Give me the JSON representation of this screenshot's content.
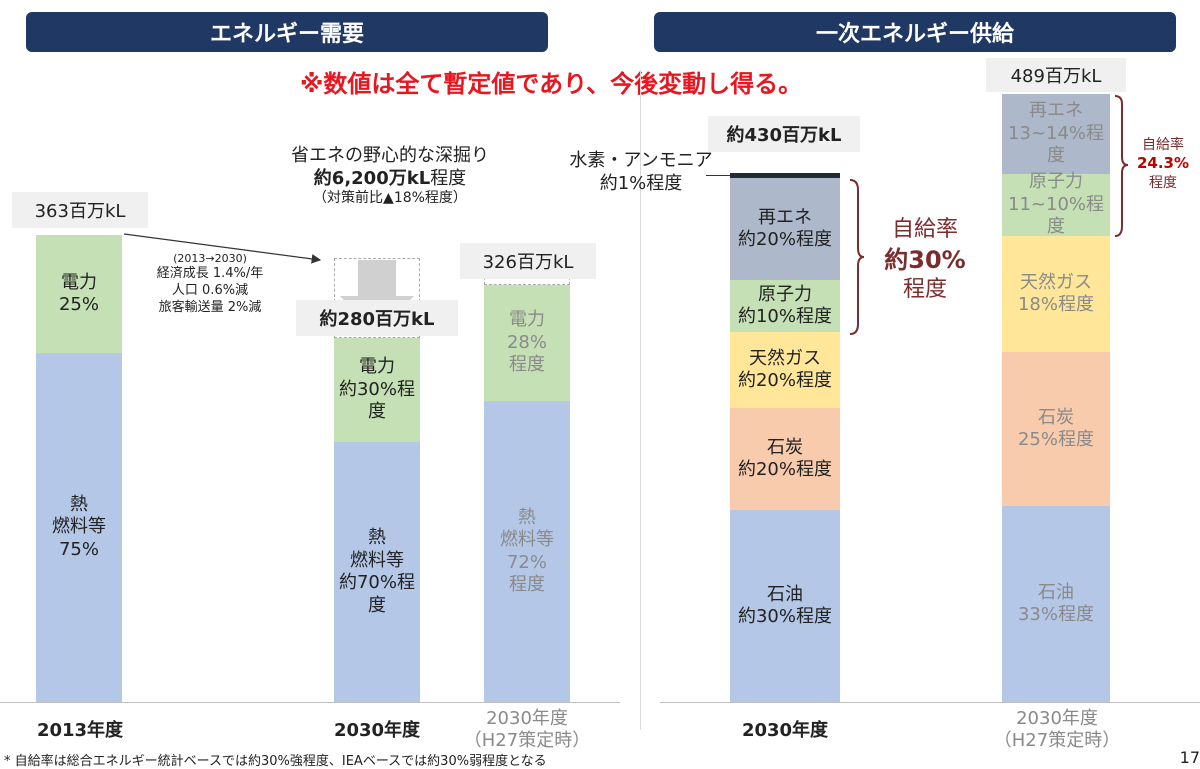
{
  "headers": {
    "left": "エネルギー需要",
    "right": "一次エネルギー供給"
  },
  "warning": "※数値は全て暫定値であり、今後変動し得る。",
  "footnote": "* 自給率は総合エネルギー統計ベースでは約30%強程度、IEAベースでは約30%弱程度となる",
  "page_number": "17",
  "colors": {
    "header_bg": "#1f3864",
    "warning": "#e8171f",
    "heat": "#b4c7e7",
    "power": "#c5e0b4",
    "renew": "#adb9ca",
    "nuclear": "#c5e0b4",
    "gas": "#ffe699",
    "coal": "#f8cbad",
    "oil": "#b4c7e7",
    "hydrogen": "#222a35",
    "self_rate": "#7b2c2c"
  },
  "demand": {
    "bar2013": {
      "total": "363百万kL",
      "category": "2013年度",
      "seg_power": [
        "電力",
        "25%"
      ],
      "seg_heat": [
        "熱",
        "燃料等",
        "75%"
      ]
    },
    "arrow_note": [
      "(2013→2030)",
      "経済成長 1.4%/年",
      "人口 0.6%減",
      "旅客輸送量 2%減"
    ],
    "saving": {
      "line1": "省エネの野心的な深掘り",
      "line2_bold": "約6,200万kL",
      "line2_rest": "程度",
      "line3": "（対策前比▲18%程度）"
    },
    "bar2030": {
      "total": "約280百万kL",
      "category": "2030年度",
      "seg_power": [
        "電力",
        "約30%程度"
      ],
      "seg_heat": [
        "熱",
        "燃料等",
        "約70%程度"
      ]
    },
    "bar2030_h27": {
      "total": "326百万kL",
      "category": [
        "2030年度",
        "（H27策定時）"
      ],
      "seg_power": [
        "電力",
        "28%",
        "程度"
      ],
      "seg_heat": [
        "熱",
        "燃料等",
        "72%",
        "程度"
      ]
    }
  },
  "supply": {
    "bar2030": {
      "total": "約430百万kL",
      "category": "2030年度",
      "hydrogen_label": [
        "水素・アンモニア",
        "約1%程度"
      ],
      "seg_renew": [
        "再エネ",
        "約20%程度"
      ],
      "seg_nuclear": [
        "原子力",
        "約10%程度"
      ],
      "seg_gas": [
        "天然ガス",
        "約20%程度"
      ],
      "seg_coal": [
        "石炭",
        "約20%程度"
      ],
      "seg_oil": [
        "石油",
        "約30%程度"
      ],
      "self_rate": [
        "自給率",
        "約30%",
        "程度"
      ]
    },
    "bar2030_h27": {
      "total": "489百万kL",
      "category": [
        "2030年度",
        "（H27策定時）"
      ],
      "seg_renew": [
        "再エネ",
        "13~14%程度"
      ],
      "seg_nuclear": [
        "原子力",
        "11~10%程度"
      ],
      "seg_gas": [
        "天然ガス",
        "18%程度"
      ],
      "seg_coal": [
        "石炭",
        "25%程度"
      ],
      "seg_oil": [
        "石油",
        "33%程度"
      ],
      "self_rate": [
        "自給率",
        "24.3%",
        "程度"
      ]
    }
  },
  "chart_data": [
    {
      "type": "bar",
      "stacked": true,
      "categories": [
        "2013年度",
        "2030年度",
        "2030年度（H27策定時）"
      ],
      "totals_million_kl": [
        363,
        280,
        326
      ],
      "series": [
        {
          "name": "熱・燃料等",
          "values": [
            75,
            70,
            72
          ]
        },
        {
          "name": "電力",
          "values": [
            25,
            30,
            28
          ]
        }
      ]
    },
    {
      "type": "bar",
      "stacked": true,
      "categories": [
        "2030年度",
        "2030年度（H27策定時）"
      ],
      "totals_million_kl": [
        430,
        489
      ],
      "series": [
        {
          "name": "石油",
          "values": [
            30,
            33
          ]
        },
        {
          "name": "石炭",
          "values": [
            20,
            25
          ]
        },
        {
          "name": "天然ガス",
          "values": [
            20,
            18
          ]
        },
        {
          "name": "原子力",
          "values": [
            10,
            10.5
          ]
        },
        {
          "name": "再エネ",
          "values": [
            20,
            13.5
          ]
        },
        {
          "name": "水素・アンモニア",
          "values": [
            1,
            0
          ]
        }
      ]
    }
  ]
}
